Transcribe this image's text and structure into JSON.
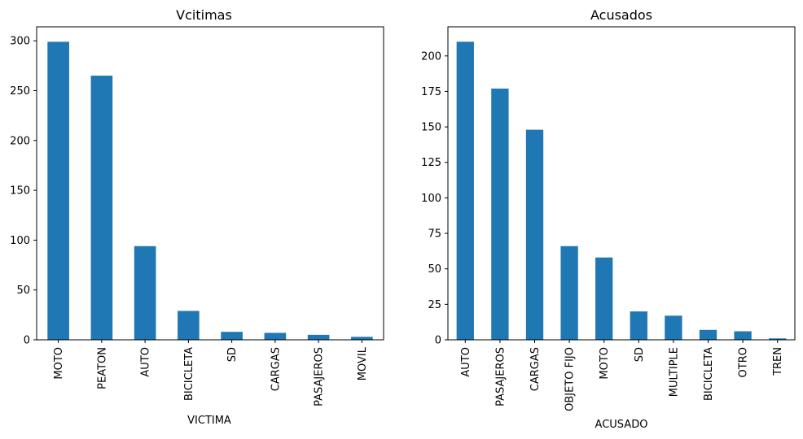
{
  "chart_data": [
    {
      "type": "bar",
      "title": "Vcitimas",
      "xlabel": "VICTIMA",
      "ylabel": "",
      "categories": [
        "MOTO",
        "PEATON",
        "AUTO",
        "BICICLETA",
        "SD",
        "CARGAS",
        "PASAJEROS",
        "MOVIL"
      ],
      "values": [
        299,
        265,
        94,
        29,
        8,
        7,
        5,
        3
      ],
      "yticks": [
        0,
        50,
        100,
        150,
        200,
        250,
        300
      ],
      "ylim": [
        0,
        314
      ],
      "grid": false,
      "color": "#1f77b4"
    },
    {
      "type": "bar",
      "title": "Acusados",
      "xlabel": "ACUSADO",
      "ylabel": "",
      "categories": [
        "AUTO",
        "PASAJEROS",
        "CARGAS",
        "OBJETO FIJO",
        "MOTO",
        "SD",
        "MULTIPLE",
        "BICICLETA",
        "OTRO",
        "TREN"
      ],
      "values": [
        210,
        177,
        148,
        66,
        58,
        20,
        17,
        7,
        6,
        1
      ],
      "yticks": [
        0,
        25,
        50,
        75,
        100,
        125,
        150,
        175,
        200
      ],
      "ylim": [
        0,
        220.5
      ],
      "grid": false,
      "color": "#1f77b4"
    }
  ]
}
